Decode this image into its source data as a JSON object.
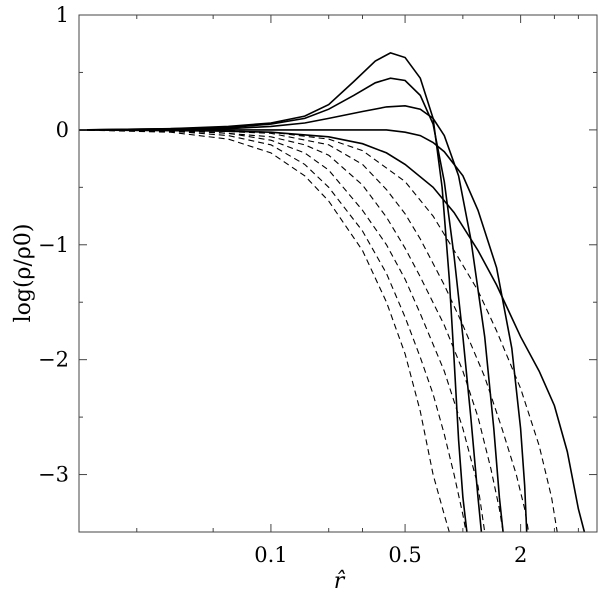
{
  "chart_data": {
    "type": "line",
    "xlabel": "r̂",
    "ylabel": "log(ρ/ρ0)",
    "xscale": "log",
    "xlim": [
      0.01,
      5.0
    ],
    "ylim": [
      -3.5,
      1.0
    ],
    "xticks": [
      {
        "value": 0.1,
        "label": "0.1"
      },
      {
        "value": 0.5,
        "label": "0.5"
      },
      {
        "value": 2,
        "label": "2"
      }
    ],
    "yticks": [
      {
        "value": 1,
        "label": "1"
      },
      {
        "value": 0,
        "label": "0"
      },
      {
        "value": -1,
        "label": "−1"
      },
      {
        "value": -2,
        "label": "−2"
      },
      {
        "value": -3,
        "label": "−3"
      }
    ],
    "grid": false,
    "series": [
      {
        "style": "solid",
        "x": [
          0.01,
          0.03,
          0.06,
          0.1,
          0.15,
          0.2,
          0.27,
          0.35,
          0.42,
          0.5,
          0.6,
          0.7,
          0.78,
          0.85,
          0.9,
          0.95,
          1.0,
          1.05
        ],
        "y": [
          0,
          0.01,
          0.03,
          0.06,
          0.12,
          0.22,
          0.42,
          0.6,
          0.67,
          0.63,
          0.45,
          0.1,
          -0.5,
          -1.3,
          -2.0,
          -2.7,
          -3.2,
          -3.5
        ]
      },
      {
        "style": "solid",
        "x": [
          0.01,
          0.03,
          0.06,
          0.1,
          0.15,
          0.2,
          0.27,
          0.35,
          0.42,
          0.5,
          0.6,
          0.7,
          0.8,
          0.9,
          1.0,
          1.1,
          1.2,
          1.25
        ],
        "y": [
          0,
          0.01,
          0.02,
          0.05,
          0.1,
          0.18,
          0.3,
          0.41,
          0.45,
          0.43,
          0.3,
          0.05,
          -0.45,
          -1.1,
          -1.8,
          -2.5,
          -3.2,
          -3.5
        ]
      },
      {
        "style": "solid",
        "x": [
          0.01,
          0.03,
          0.06,
          0.1,
          0.15,
          0.2,
          0.3,
          0.4,
          0.5,
          0.6,
          0.7,
          0.8,
          0.95,
          1.1,
          1.3,
          1.45,
          1.55,
          1.62
        ],
        "y": [
          0,
          0.005,
          0.01,
          0.03,
          0.06,
          0.1,
          0.16,
          0.2,
          0.21,
          0.18,
          0.1,
          -0.05,
          -0.4,
          -0.95,
          -1.8,
          -2.6,
          -3.2,
          -3.5
        ]
      },
      {
        "style": "solid",
        "x": [
          0.01,
          0.05,
          0.1,
          0.2,
          0.3,
          0.4,
          0.5,
          0.6,
          0.7,
          0.8,
          1.0,
          1.2,
          1.5,
          1.8,
          2.0,
          2.1,
          2.15
        ],
        "y": [
          0,
          0,
          0,
          0,
          0,
          0,
          -0.02,
          -0.05,
          -0.11,
          -0.19,
          -0.4,
          -0.7,
          -1.2,
          -1.9,
          -2.6,
          -3.1,
          -3.5
        ]
      },
      {
        "style": "solid",
        "x": [
          0.01,
          0.05,
          0.1,
          0.2,
          0.3,
          0.4,
          0.5,
          0.7,
          0.9,
          1.2,
          1.5,
          2.0,
          2.5,
          3.0,
          3.5,
          4.0,
          4.3
        ],
        "y": [
          0,
          -0.01,
          -0.02,
          -0.06,
          -0.12,
          -0.2,
          -0.3,
          -0.5,
          -0.72,
          -1.05,
          -1.35,
          -1.8,
          -2.1,
          -2.4,
          -2.8,
          -3.3,
          -3.5
        ]
      },
      {
        "style": "dashed",
        "x": [
          0.01,
          0.03,
          0.06,
          0.1,
          0.15,
          0.2,
          0.3,
          0.4,
          0.5,
          0.6,
          0.7,
          0.8,
          0.85
        ],
        "y": [
          0,
          -0.02,
          -0.08,
          -0.2,
          -0.4,
          -0.62,
          -1.05,
          -1.5,
          -1.95,
          -2.45,
          -3.0,
          -3.35,
          -3.5
        ]
      },
      {
        "style": "dashed",
        "x": [
          0.01,
          0.03,
          0.06,
          0.1,
          0.15,
          0.2,
          0.3,
          0.4,
          0.5,
          0.6,
          0.7,
          0.8,
          0.9,
          1.0,
          1.04
        ],
        "y": [
          0,
          -0.01,
          -0.05,
          -0.13,
          -0.3,
          -0.5,
          -0.88,
          -1.25,
          -1.63,
          -1.98,
          -2.3,
          -2.65,
          -3.0,
          -3.35,
          -3.5
        ]
      },
      {
        "style": "dashed",
        "x": [
          0.01,
          0.03,
          0.06,
          0.1,
          0.15,
          0.2,
          0.3,
          0.4,
          0.5,
          0.6,
          0.8,
          1.0,
          1.2,
          1.3
        ],
        "y": [
          0,
          -0.005,
          -0.03,
          -0.09,
          -0.2,
          -0.35,
          -0.7,
          -1.0,
          -1.3,
          -1.6,
          -2.1,
          -2.6,
          -3.1,
          -3.5
        ]
      },
      {
        "style": "dashed",
        "x": [
          0.01,
          0.05,
          0.1,
          0.15,
          0.2,
          0.3,
          0.4,
          0.5,
          0.6,
          0.8,
          1.0,
          1.2,
          1.4,
          1.55,
          1.62
        ],
        "y": [
          0,
          -0.02,
          -0.06,
          -0.13,
          -0.22,
          -0.48,
          -0.76,
          -1.03,
          -1.28,
          -1.7,
          -2.1,
          -2.5,
          -2.95,
          -3.3,
          -3.5
        ]
      },
      {
        "style": "dashed",
        "x": [
          0.01,
          0.05,
          0.1,
          0.2,
          0.3,
          0.4,
          0.5,
          0.6,
          0.8,
          1.0,
          1.3,
          1.6,
          1.9,
          2.1,
          2.2
        ],
        "y": [
          0,
          -0.01,
          -0.03,
          -0.13,
          -0.3,
          -0.52,
          -0.73,
          -0.95,
          -1.35,
          -1.7,
          -2.15,
          -2.6,
          -3.0,
          -3.3,
          -3.5
        ]
      },
      {
        "style": "dashed",
        "x": [
          0.01,
          0.05,
          0.1,
          0.2,
          0.3,
          0.5,
          0.7,
          0.9,
          1.2,
          1.5,
          2.0,
          2.5,
          2.9,
          3.1
        ],
        "y": [
          0,
          -0.005,
          -0.02,
          -0.08,
          -0.18,
          -0.45,
          -0.75,
          -1.05,
          -1.4,
          -1.75,
          -2.25,
          -2.75,
          -3.2,
          -3.5
        ]
      }
    ]
  }
}
